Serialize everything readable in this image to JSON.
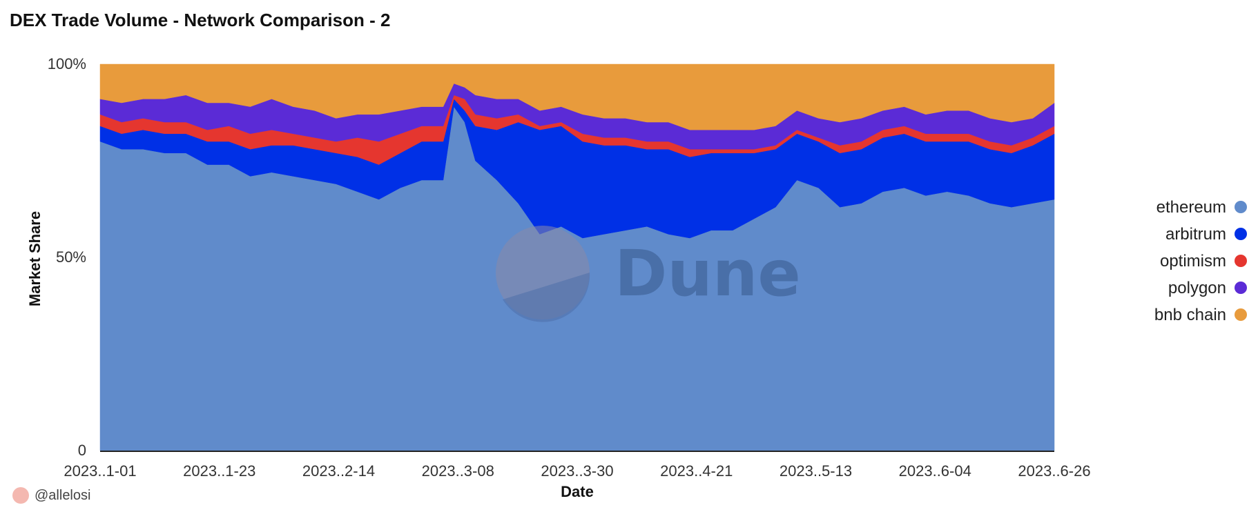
{
  "page": {
    "author": "@allelosi"
  },
  "watermark": {
    "text": "Dune"
  },
  "chart_data": {
    "type": "area",
    "stacked": true,
    "normalized": true,
    "title": "DEX Trade Volume - Network Comparison - 2",
    "xlabel": "Date",
    "ylabel": "Market Share",
    "ylim": [
      0,
      100
    ],
    "y_ticks": [
      {
        "value": 0,
        "label": "0"
      },
      {
        "value": 50,
        "label": "50%"
      },
      {
        "value": 100,
        "label": "100%"
      }
    ],
    "x_ticks": [
      "2023..1-01",
      "2023..1-23",
      "2023..2-14",
      "2023..3-08",
      "2023..3-30",
      "2023..4-21",
      "2023..5-13",
      "2023..6-04",
      "2023..6-26"
    ],
    "legend_position": "right",
    "x": [
      "2023-01-01",
      "2023-01-05",
      "2023-01-09",
      "2023-01-13",
      "2023-01-17",
      "2023-01-21",
      "2023-01-25",
      "2023-01-29",
      "2023-02-02",
      "2023-02-06",
      "2023-02-10",
      "2023-02-14",
      "2023-02-18",
      "2023-02-22",
      "2023-02-26",
      "2023-03-02",
      "2023-03-06",
      "2023-03-08",
      "2023-03-10",
      "2023-03-12",
      "2023-03-16",
      "2023-03-20",
      "2023-03-24",
      "2023-03-28",
      "2023-04-01",
      "2023-04-05",
      "2023-04-09",
      "2023-04-13",
      "2023-04-17",
      "2023-04-21",
      "2023-04-25",
      "2023-04-29",
      "2023-05-03",
      "2023-05-07",
      "2023-05-11",
      "2023-05-15",
      "2023-05-19",
      "2023-05-23",
      "2023-05-27",
      "2023-05-31",
      "2023-06-04",
      "2023-06-08",
      "2023-06-12",
      "2023-06-16",
      "2023-06-20",
      "2023-06-24",
      "2023-06-28"
    ],
    "series": [
      {
        "name": "ethereum",
        "color": "#608bcb",
        "values": [
          80,
          78,
          78,
          77,
          77,
          74,
          74,
          71,
          72,
          71,
          70,
          69,
          67,
          65,
          68,
          70,
          70,
          89,
          85,
          75,
          70,
          64,
          56,
          58,
          55,
          56,
          57,
          58,
          56,
          55,
          57,
          57,
          60,
          63,
          70,
          68,
          63,
          64,
          67,
          68,
          66,
          67,
          66,
          64,
          63,
          64,
          65
        ]
      },
      {
        "name": "arbitrum",
        "color": "#0030e6",
        "values": [
          4,
          4,
          5,
          5,
          5,
          6,
          6,
          7,
          7,
          8,
          8,
          8,
          9,
          9,
          9,
          10,
          10,
          2,
          3,
          9,
          13,
          21,
          27,
          26,
          25,
          23,
          22,
          20,
          22,
          21,
          20,
          20,
          17,
          15,
          12,
          12,
          14,
          14,
          14,
          14,
          14,
          13,
          14,
          14,
          14,
          15,
          17
        ]
      },
      {
        "name": "optimism",
        "color": "#e5362f",
        "values": [
          3,
          3,
          3,
          3,
          3,
          3,
          4,
          4,
          4,
          3,
          3,
          3,
          5,
          6,
          5,
          4,
          4,
          1,
          3,
          3,
          3,
          2,
          1,
          1,
          2,
          2,
          2,
          2,
          2,
          2,
          1,
          1,
          1,
          1,
          1,
          1,
          2,
          2,
          2,
          2,
          2,
          2,
          2,
          2,
          2,
          2,
          2
        ]
      },
      {
        "name": "polygon",
        "color": "#5b2bd6",
        "values": [
          4,
          5,
          5,
          6,
          7,
          7,
          6,
          7,
          8,
          7,
          7,
          6,
          6,
          7,
          6,
          5,
          5,
          3,
          3,
          5,
          5,
          4,
          4,
          4,
          5,
          5,
          5,
          5,
          5,
          5,
          5,
          5,
          5,
          5,
          5,
          5,
          6,
          6,
          5,
          5,
          5,
          6,
          6,
          6,
          6,
          5,
          6
        ]
      },
      {
        "name": "bnb chain",
        "color": "#e89b3c",
        "values": [
          9,
          10,
          9,
          9,
          8,
          10,
          10,
          11,
          9,
          11,
          12,
          14,
          13,
          13,
          12,
          11,
          11,
          5,
          6,
          8,
          9,
          9,
          12,
          11,
          13,
          14,
          14,
          15,
          15,
          17,
          17,
          17,
          17,
          16,
          12,
          14,
          15,
          14,
          12,
          11,
          13,
          12,
          12,
          14,
          15,
          14,
          10
        ]
      }
    ]
  }
}
